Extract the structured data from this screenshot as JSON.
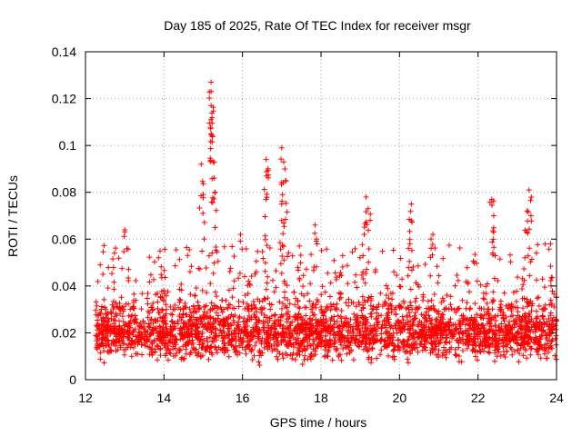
{
  "chart_data": {
    "type": "scatter",
    "title": "Day 185 of 2025, Rate Of TEC Index for receiver msgr",
    "xlabel": "GPS time / hours",
    "ylabel": "ROTI / TECUs",
    "xlim": [
      12,
      24
    ],
    "ylim": [
      0,
      0.14
    ],
    "xticks": [
      12,
      14,
      16,
      18,
      20,
      22,
      24
    ],
    "xtick_labels": [
      "12",
      "14",
      "16",
      "18",
      "20",
      "22",
      "24"
    ],
    "yticks": [
      0,
      0.02,
      0.04,
      0.06,
      0.08,
      0.1,
      0.12,
      0.14
    ],
    "ytick_labels": [
      "0",
      "0.02",
      "0.04",
      "0.06",
      "0.08",
      "0.1",
      "0.12",
      "0.14"
    ],
    "grid": true,
    "marker": "+",
    "color": "#ff0000",
    "data_x_range": [
      12.25,
      24.0
    ],
    "baseline_band": [
      0.005,
      0.035
    ],
    "peaks": [
      {
        "x": 13.0,
        "y": 0.064
      },
      {
        "x": 13.9,
        "y": 0.055
      },
      {
        "x": 14.95,
        "y": 0.092
      },
      {
        "x": 15.2,
        "y": 0.127
      },
      {
        "x": 15.2,
        "y": 0.123
      },
      {
        "x": 15.2,
        "y": 0.117
      },
      {
        "x": 15.2,
        "y": 0.111
      },
      {
        "x": 15.2,
        "y": 0.105
      },
      {
        "x": 15.25,
        "y": 0.093
      },
      {
        "x": 15.3,
        "y": 0.08
      },
      {
        "x": 15.0,
        "y": 0.079
      },
      {
        "x": 15.3,
        "y": 0.065
      },
      {
        "x": 15.95,
        "y": 0.062
      },
      {
        "x": 16.6,
        "y": 0.094
      },
      {
        "x": 16.65,
        "y": 0.09
      },
      {
        "x": 16.6,
        "y": 0.077
      },
      {
        "x": 17.0,
        "y": 0.099
      },
      {
        "x": 17.05,
        "y": 0.093
      },
      {
        "x": 17.1,
        "y": 0.085
      },
      {
        "x": 17.0,
        "y": 0.075
      },
      {
        "x": 17.0,
        "y": 0.068
      },
      {
        "x": 17.85,
        "y": 0.066
      },
      {
        "x": 19.15,
        "y": 0.078
      },
      {
        "x": 19.2,
        "y": 0.073
      },
      {
        "x": 19.1,
        "y": 0.062
      },
      {
        "x": 20.3,
        "y": 0.075
      },
      {
        "x": 20.3,
        "y": 0.068
      },
      {
        "x": 20.85,
        "y": 0.062
      },
      {
        "x": 22.35,
        "y": 0.077
      },
      {
        "x": 22.4,
        "y": 0.07
      },
      {
        "x": 22.4,
        "y": 0.063
      },
      {
        "x": 23.3,
        "y": 0.081
      },
      {
        "x": 23.25,
        "y": 0.072
      },
      {
        "x": 23.35,
        "y": 0.07
      },
      {
        "x": 23.85,
        "y": 0.058
      }
    ]
  }
}
